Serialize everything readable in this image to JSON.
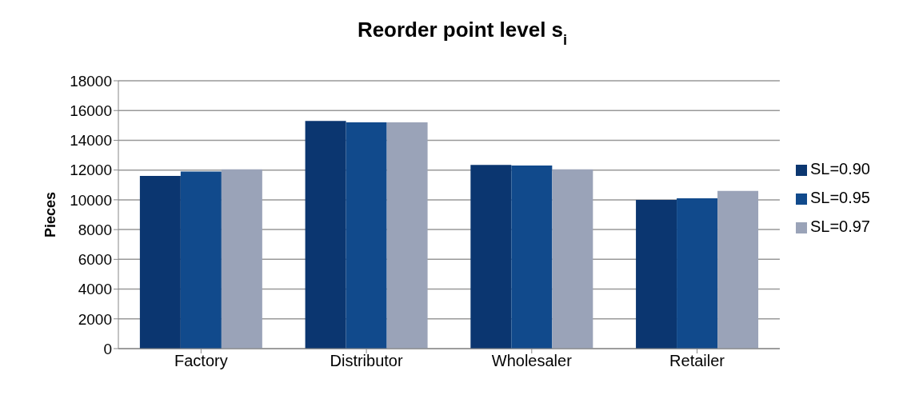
{
  "chart_data": {
    "type": "bar",
    "title": "Reorder point level s$_{i}$",
    "ylabel": "Pieces",
    "categories": [
      "Factory",
      "Distributor",
      "Wholesaler",
      "Retailer"
    ],
    "series": [
      {
        "name": "SL=0.90",
        "color": "#0b3670",
        "values": [
          11600,
          15300,
          12350,
          10000
        ]
      },
      {
        "name": "SL=0.95",
        "color": "#114a8c",
        "values": [
          11900,
          15200,
          12300,
          10100
        ]
      },
      {
        "name": "SL=0.97",
        "color": "#9aa3b8",
        "values": [
          12050,
          15200,
          12050,
          10600
        ]
      }
    ],
    "ylim": [
      0,
      18000
    ],
    "yticks": [
      0,
      2000,
      4000,
      6000,
      8000,
      10000,
      12000,
      14000,
      16000,
      18000
    ],
    "grid": "y",
    "legend": "right"
  }
}
